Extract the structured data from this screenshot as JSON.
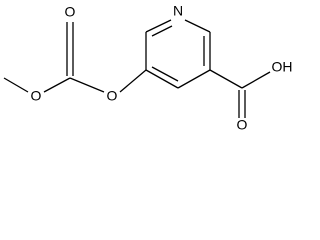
{
  "atoms": [
    {
      "label": "N"
    },
    {
      "label": "O"
    },
    {
      "label": "O"
    },
    {
      "label": "O"
    },
    {
      "label": "O"
    },
    {
      "label": "OH"
    }
  ]
}
